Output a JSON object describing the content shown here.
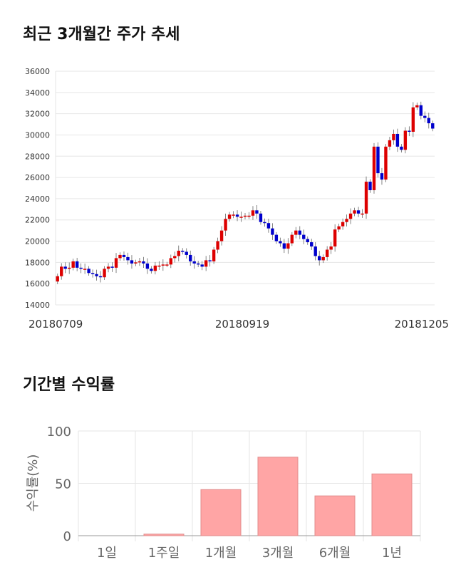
{
  "titles": {
    "price_chart": "최근 3개월간 주가 추세",
    "return_chart": "기간별 수익률"
  },
  "colors": {
    "up": "#dd0000",
    "down": "#0000cc",
    "bar_fill": "#ffa5a5",
    "bar_stroke": "#e08c8c"
  },
  "chart_data": [
    {
      "type": "candlestick",
      "title": "최근 3개월간 주가 추세",
      "ylim": [
        14000,
        36000
      ],
      "y_ticks": [
        14000,
        16000,
        18000,
        20000,
        22000,
        24000,
        26000,
        28000,
        30000,
        32000,
        34000,
        36000
      ],
      "x_tick_labels": [
        "20180709",
        "20180919",
        "20181205"
      ],
      "grid": true,
      "series_close": [
        16700,
        17600,
        17400,
        17500,
        18100,
        17500,
        17400,
        17400,
        17000,
        16900,
        16700,
        16600,
        17400,
        17600,
        17500,
        18400,
        18700,
        18500,
        18200,
        17900,
        18000,
        18100,
        17900,
        17400,
        17200,
        17700,
        17700,
        17800,
        17800,
        18400,
        18600,
        19100,
        19000,
        18700,
        18100,
        17900,
        17800,
        17600,
        18200,
        18100,
        19200,
        20000,
        21000,
        22100,
        22500,
        22500,
        22300,
        22300,
        22400,
        22400,
        22900,
        22600,
        21800,
        21700,
        21200,
        20600,
        20000,
        19800,
        19300,
        19800,
        20600,
        21000,
        20600,
        20200,
        19900,
        19500,
        18600,
        18200,
        18500,
        19200,
        19500,
        21100,
        21400,
        21800,
        22100,
        22600,
        22900,
        22600,
        22600,
        25600,
        24800,
        28900,
        26400,
        25800,
        28900,
        29500,
        30100,
        28900,
        28600,
        30400,
        30300,
        32600,
        32800,
        31800,
        31600,
        31100,
        30600
      ]
    },
    {
      "type": "bar",
      "title": "기간별 수익률",
      "categories": [
        "1일",
        "1주일",
        "1개월",
        "3개월",
        "6개월",
        "1년"
      ],
      "values": [
        0,
        1.5,
        44,
        75,
        38,
        59
      ],
      "ylabel": "수익률(%)",
      "ylim": [
        0,
        100
      ],
      "y_ticks": [
        0,
        50,
        100
      ],
      "grid": true
    }
  ]
}
